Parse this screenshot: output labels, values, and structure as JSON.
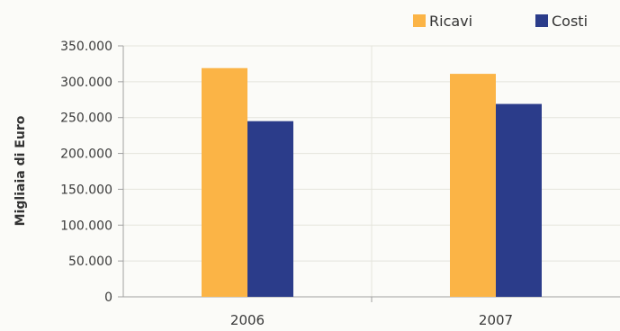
{
  "chart_data": {
    "type": "bar",
    "title": "",
    "xlabel": "",
    "ylabel": "Migliaia di Euro",
    "categories": [
      "2006",
      "2007"
    ],
    "series": [
      {
        "name": "Ricavi",
        "color": "#fbb446",
        "values": [
          319000,
          311000
        ]
      },
      {
        "name": "Costi",
        "color": "#2b3c8a",
        "values": [
          245000,
          269000
        ]
      }
    ],
    "ylim": [
      0,
      350000
    ],
    "yticks": [
      0,
      50000,
      100000,
      150000,
      200000,
      250000,
      300000,
      350000
    ],
    "ytick_labels": [
      "0",
      "50.000",
      "100.000",
      "150.000",
      "200.000",
      "250.000",
      "300.000",
      "350.000"
    ],
    "grid": true,
    "legend_position": "top-right"
  }
}
